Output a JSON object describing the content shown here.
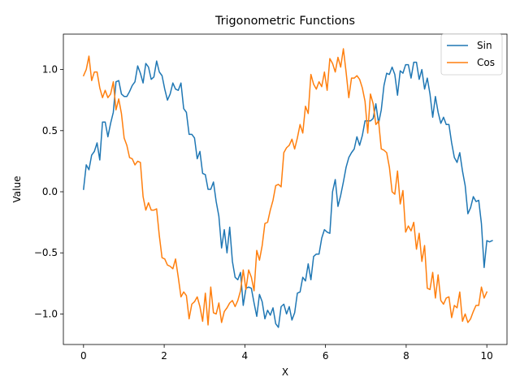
{
  "chart_data": {
    "type": "line",
    "title": "Trigonometric Functions",
    "xlabel": "X",
    "ylabel": "Value",
    "xlim": [
      -0.5,
      10.5
    ],
    "ylim": [
      -1.25,
      1.29
    ],
    "xticks": [
      0,
      2,
      4,
      6,
      8,
      10
    ],
    "xtick_labels": [
      "0",
      "2",
      "4",
      "6",
      "8",
      "10"
    ],
    "yticks": [
      -1.0,
      -0.5,
      0.0,
      0.5,
      1.0
    ],
    "ytick_labels": [
      "−1.0",
      "−0.5",
      "0.0",
      "0.5",
      "1.0"
    ],
    "grid": false,
    "legend_position": "top-right",
    "x": {
      "start": 0,
      "stop": 10,
      "num": 150
    },
    "series": [
      {
        "name": "Sin",
        "color": "#1f77b4",
        "values": [
          0.02,
          0.22,
          0.18,
          0.3,
          0.33,
          0.4,
          0.26,
          0.57,
          0.57,
          0.45,
          0.56,
          0.65,
          0.9,
          0.91,
          0.8,
          0.78,
          0.78,
          0.82,
          0.87,
          0.9,
          1.03,
          0.97,
          0.89,
          1.05,
          1.02,
          0.92,
          0.94,
          1.07,
          0.98,
          0.95,
          0.84,
          0.75,
          0.8,
          0.89,
          0.84,
          0.83,
          0.89,
          0.68,
          0.65,
          0.47,
          0.47,
          0.44,
          0.27,
          0.33,
          0.15,
          0.14,
          0.02,
          0.02,
          0.08,
          -0.08,
          -0.2,
          -0.46,
          -0.31,
          -0.5,
          -0.29,
          -0.57,
          -0.7,
          -0.72,
          -0.66,
          -0.93,
          -0.79,
          -0.78,
          -0.79,
          -0.91,
          -1.02,
          -0.84,
          -0.9,
          -1.04,
          -0.97,
          -1.01,
          -0.95,
          -1.08,
          -1.11,
          -0.94,
          -0.92,
          -1.0,
          -0.94,
          -1.05,
          -0.99,
          -0.83,
          -0.82,
          -0.7,
          -0.73,
          -0.59,
          -0.72,
          -0.53,
          -0.51,
          -0.51,
          -0.38,
          -0.31,
          -0.33,
          -0.34,
          0.0,
          0.1,
          -0.12,
          -0.03,
          0.08,
          0.2,
          0.28,
          0.32,
          0.35,
          0.45,
          0.38,
          0.46,
          0.58,
          0.58,
          0.58,
          0.6,
          0.72,
          0.56,
          0.67,
          0.87,
          0.97,
          0.96,
          1.02,
          0.96,
          0.79,
          0.99,
          0.97,
          1.04,
          1.04,
          0.93,
          1.06,
          1.06,
          0.92,
          1.0,
          0.84,
          0.93,
          0.8,
          0.61,
          0.78,
          0.65,
          0.56,
          0.61,
          0.55,
          0.55,
          0.4,
          0.28,
          0.24,
          0.32,
          0.17,
          0.05,
          -0.18,
          -0.13,
          -0.04,
          -0.08,
          -0.07,
          -0.26,
          -0.62,
          -0.4,
          -0.41,
          -0.4
        ]
      },
      {
        "name": "Cos",
        "color": "#ff7f0e",
        "values": [
          0.95,
          1.0,
          1.11,
          0.91,
          0.98,
          0.98,
          0.85,
          0.77,
          0.83,
          0.77,
          0.8,
          0.9,
          0.67,
          0.76,
          0.64,
          0.44,
          0.38,
          0.28,
          0.27,
          0.22,
          0.25,
          0.24,
          -0.04,
          -0.15,
          -0.09,
          -0.15,
          -0.15,
          -0.14,
          -0.36,
          -0.54,
          -0.55,
          -0.6,
          -0.61,
          -0.63,
          -0.55,
          -0.7,
          -0.86,
          -0.82,
          -0.85,
          -1.04,
          -0.92,
          -0.9,
          -0.86,
          -0.94,
          -1.06,
          -0.83,
          -1.09,
          -0.78,
          -0.99,
          -1.0,
          -0.91,
          -1.07,
          -0.98,
          -0.95,
          -0.91,
          -0.89,
          -0.94,
          -0.89,
          -0.81,
          -0.64,
          -0.8,
          -0.64,
          -0.7,
          -0.81,
          -0.48,
          -0.56,
          -0.44,
          -0.26,
          -0.25,
          -0.15,
          -0.07,
          0.05,
          0.06,
          0.04,
          0.32,
          0.36,
          0.38,
          0.43,
          0.35,
          0.44,
          0.55,
          0.48,
          0.7,
          0.64,
          0.96,
          0.88,
          0.84,
          0.9,
          0.86,
          0.98,
          0.83,
          1.09,
          1.05,
          0.98,
          1.1,
          1.02,
          1.17,
          0.98,
          0.77,
          0.93,
          0.93,
          0.95,
          0.92,
          0.85,
          0.74,
          0.48,
          0.8,
          0.72,
          0.55,
          0.58,
          0.35,
          0.34,
          0.32,
          0.2,
          0.0,
          -0.02,
          0.17,
          -0.1,
          0.01,
          -0.33,
          -0.28,
          -0.32,
          -0.25,
          -0.47,
          -0.34,
          -0.57,
          -0.44,
          -0.79,
          -0.8,
          -0.66,
          -0.87,
          -0.68,
          -0.89,
          -0.92,
          -0.87,
          -0.86,
          -1.03,
          -0.93,
          -0.95,
          -0.82,
          -1.06,
          -1.0,
          -1.07,
          -1.04,
          -0.98,
          -0.93,
          -0.93,
          -0.78,
          -0.87,
          -0.82
        ]
      }
    ]
  }
}
